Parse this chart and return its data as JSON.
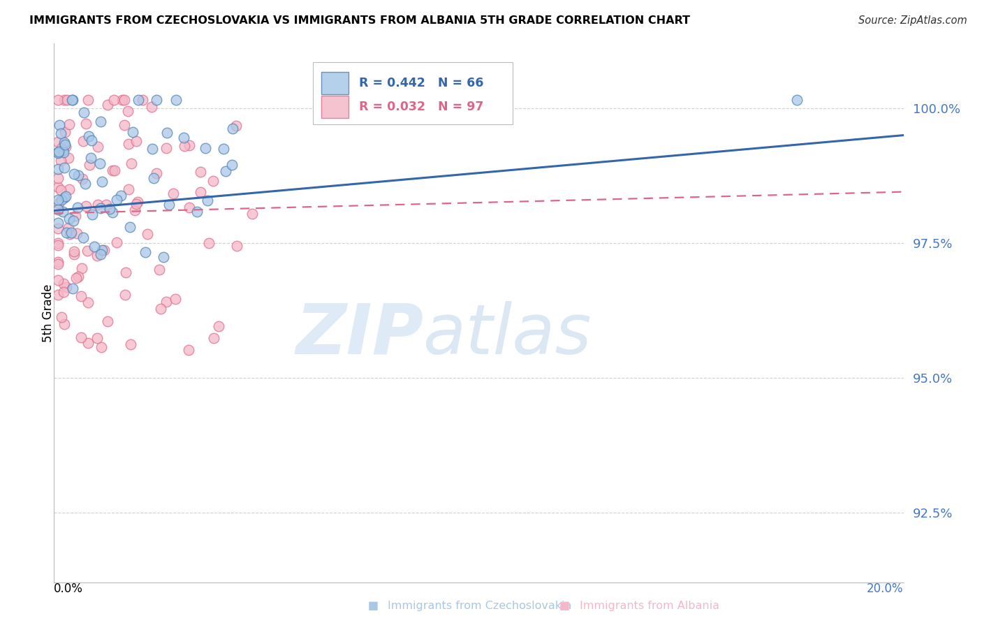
{
  "title": "IMMIGRANTS FROM CZECHOSLOVAKIA VS IMMIGRANTS FROM ALBANIA 5TH GRADE CORRELATION CHART",
  "source": "Source: ZipAtlas.com",
  "ylabel": "5th Grade",
  "yticks": [
    92.5,
    95.0,
    97.5,
    100.0
  ],
  "xlim": [
    0.0,
    0.2
  ],
  "ylim": [
    91.2,
    101.2
  ],
  "legend_blue_r": "R = 0.442",
  "legend_blue_n": "N = 66",
  "legend_pink_r": "R = 0.032",
  "legend_pink_n": "N = 97",
  "legend_blue_label": "Immigrants from Czechoslovakia",
  "legend_pink_label": "Immigrants from Albania",
  "blue_fill_color": "#a8c8e8",
  "pink_fill_color": "#f4b8c8",
  "blue_edge_color": "#5585b5",
  "pink_edge_color": "#e07090",
  "blue_line_color": "#3366aa",
  "pink_line_color": "#dd6688",
  "ytick_color": "#4477cc",
  "xright_color": "#4477cc",
  "watermark_zip_color": "#c8ddf0",
  "watermark_atlas_color": "#b0cce8",
  "blue_trend": [
    0.0,
    98.1,
    0.2,
    99.5
  ],
  "pink_trend": [
    0.0,
    98.05,
    0.2,
    98.45
  ],
  "seed_blue": 42,
  "seed_pink": 99
}
